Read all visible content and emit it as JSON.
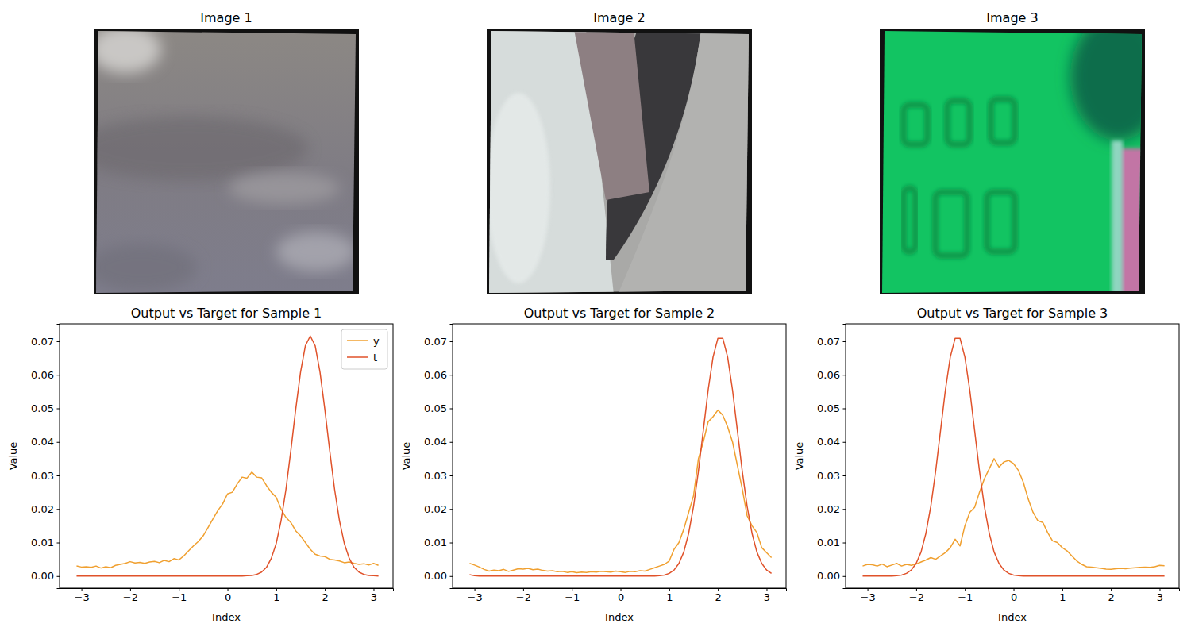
{
  "images": [
    {
      "title": "Image 1"
    },
    {
      "title": "Image 2"
    },
    {
      "title": "Image 3"
    }
  ],
  "chart_data": [
    {
      "type": "line",
      "title": "Output vs Target for Sample 1",
      "x_label": "Index",
      "y_label": "Value",
      "legend": "upper right",
      "xlim": [
        -3.45,
        3.4
      ],
      "ylim": [
        -0.0036,
        0.0752
      ],
      "xticks": [
        {
          "value": -3,
          "label": "−3"
        },
        {
          "value": -2,
          "label": "−2"
        },
        {
          "value": -1,
          "label": "−1"
        },
        0,
        1,
        2,
        3
      ],
      "yticks": [
        {
          "value": 0,
          "label": "0.00"
        },
        {
          "value": 0.01,
          "label": "0.01"
        },
        {
          "value": 0.02,
          "label": "0.02"
        },
        {
          "value": 0.03,
          "label": "0.03"
        },
        {
          "value": 0.04,
          "label": "0.04"
        },
        {
          "value": 0.05,
          "label": "0.05"
        },
        {
          "value": 0.06,
          "label": "0.06"
        },
        {
          "value": 0.07,
          "label": "0.07"
        }
      ],
      "x": [
        -3.1,
        -3.0,
        -2.9,
        -2.8,
        -2.7,
        -2.6,
        -2.5,
        -2.4,
        -2.3,
        -2.2,
        -2.1,
        -2.0,
        -1.9,
        -1.8,
        -1.7,
        -1.6,
        -1.5,
        -1.4,
        -1.3,
        -1.2,
        -1.1,
        -1.0,
        -0.9,
        -0.8,
        -0.7,
        -0.6,
        -0.5,
        -0.4,
        -0.3,
        -0.2,
        -0.1,
        0.0,
        0.1,
        0.2,
        0.3,
        0.4,
        0.5,
        0.6,
        0.7,
        0.8,
        0.9,
        1.0,
        1.1,
        1.2,
        1.3,
        1.4,
        1.5,
        1.6,
        1.7,
        1.8,
        1.9,
        2.0,
        2.1,
        2.2,
        2.3,
        2.4,
        2.5,
        2.6,
        2.7,
        2.8,
        2.9,
        3.0,
        3.1
      ],
      "series": [
        {
          "name": "y",
          "color": "#f0a030",
          "values": [
            0.003,
            0.0027,
            0.0028,
            0.0026,
            0.003,
            0.0024,
            0.0028,
            0.0025,
            0.0032,
            0.0035,
            0.0038,
            0.0043,
            0.0039,
            0.0041,
            0.0038,
            0.0042,
            0.0044,
            0.004,
            0.0047,
            0.0043,
            0.0052,
            0.0048,
            0.006,
            0.0075,
            0.009,
            0.0103,
            0.012,
            0.0145,
            0.017,
            0.0195,
            0.0215,
            0.0245,
            0.025,
            0.0275,
            0.0295,
            0.0292,
            0.031,
            0.0295,
            0.0293,
            0.027,
            0.025,
            0.0235,
            0.02,
            0.0175,
            0.016,
            0.0135,
            0.012,
            0.01,
            0.008,
            0.0065,
            0.006,
            0.0058,
            0.005,
            0.0048,
            0.0045,
            0.004,
            0.0042,
            0.0038,
            0.0035,
            0.0037,
            0.0033,
            0.0038,
            0.0032
          ]
        },
        {
          "name": "t",
          "color": "#e0522a",
          "values": [
            0,
            0,
            0,
            0,
            0,
            0,
            0,
            0,
            0,
            0,
            0,
            0,
            0,
            0,
            0,
            0,
            0,
            0,
            0,
            0,
            0,
            0,
            0,
            0,
            0,
            0,
            0,
            0,
            0,
            0,
            0,
            0,
            0,
            0,
            0,
            0.0001,
            0.0002,
            0.0005,
            0.0012,
            0.0026,
            0.0053,
            0.0097,
            0.0165,
            0.0258,
            0.0373,
            0.0496,
            0.0608,
            0.0687,
            0.0716,
            0.0687,
            0.0608,
            0.0496,
            0.0373,
            0.0258,
            0.0165,
            0.0097,
            0.0053,
            0.0026,
            0.0012,
            0.0005,
            0.0002,
            0.0001,
            0
          ]
        }
      ]
    },
    {
      "type": "line",
      "title": "Output vs Target for Sample 2",
      "x_label": "Index",
      "y_label": "Value",
      "xlim": [
        -3.45,
        3.4
      ],
      "ylim": [
        -0.0036,
        0.0752
      ],
      "xticks": [
        {
          "value": -3,
          "label": "−3"
        },
        {
          "value": -2,
          "label": "−2"
        },
        {
          "value": -1,
          "label": "−1"
        },
        0,
        1,
        2,
        3
      ],
      "yticks": [
        {
          "value": 0,
          "label": "0.00"
        },
        {
          "value": 0.01,
          "label": "0.01"
        },
        {
          "value": 0.02,
          "label": "0.02"
        },
        {
          "value": 0.03,
          "label": "0.03"
        },
        {
          "value": 0.04,
          "label": "0.04"
        },
        {
          "value": 0.05,
          "label": "0.05"
        },
        {
          "value": 0.06,
          "label": "0.06"
        },
        {
          "value": 0.07,
          "label": "0.07"
        }
      ],
      "x": [
        -3.1,
        -3.0,
        -2.9,
        -2.8,
        -2.7,
        -2.6,
        -2.5,
        -2.4,
        -2.3,
        -2.2,
        -2.1,
        -2.0,
        -1.9,
        -1.8,
        -1.7,
        -1.6,
        -1.5,
        -1.4,
        -1.3,
        -1.2,
        -1.1,
        -1.0,
        -0.9,
        -0.8,
        -0.7,
        -0.6,
        -0.5,
        -0.4,
        -0.3,
        -0.2,
        -0.1,
        0.0,
        0.1,
        0.2,
        0.3,
        0.4,
        0.5,
        0.6,
        0.7,
        0.8,
        0.9,
        1.0,
        1.1,
        1.2,
        1.3,
        1.4,
        1.5,
        1.6,
        1.7,
        1.8,
        1.9,
        2.0,
        2.1,
        2.2,
        2.3,
        2.4,
        2.5,
        2.6,
        2.7,
        2.8,
        2.9,
        3.0,
        3.1
      ],
      "series": [
        {
          "color": "#f0a030",
          "values": [
            0.0038,
            0.0033,
            0.0027,
            0.002,
            0.0015,
            0.0018,
            0.0016,
            0.002,
            0.0014,
            0.0018,
            0.0022,
            0.0021,
            0.0023,
            0.0019,
            0.0021,
            0.0017,
            0.0015,
            0.0016,
            0.0013,
            0.0014,
            0.0011,
            0.0013,
            0.001,
            0.0012,
            0.0011,
            0.0013,
            0.0012,
            0.0014,
            0.0013,
            0.0012,
            0.0015,
            0.0013,
            0.0011,
            0.0014,
            0.0013,
            0.0016,
            0.0015,
            0.002,
            0.0025,
            0.003,
            0.0035,
            0.0045,
            0.008,
            0.01,
            0.014,
            0.019,
            0.024,
            0.035,
            0.04,
            0.046,
            0.0475,
            0.0495,
            0.048,
            0.0445,
            0.04,
            0.033,
            0.026,
            0.018,
            0.015,
            0.013,
            0.0085,
            0.007,
            0.0055
          ]
        },
        {
          "color": "#e0522a",
          "values": [
            0.0004,
            0.0001,
            0,
            0,
            0,
            0,
            0,
            0,
            0,
            0,
            0,
            0,
            0,
            0,
            0,
            0,
            0,
            0,
            0,
            0,
            0,
            0,
            0,
            0,
            0,
            0,
            0,
            0,
            0,
            0,
            0,
            0,
            0,
            0,
            0,
            0,
            0,
            0,
            0,
            0.0001,
            0.0003,
            0.0008,
            0.0018,
            0.0038,
            0.0072,
            0.0128,
            0.0208,
            0.0313,
            0.0434,
            0.0555,
            0.0653,
            0.0709,
            0.0709,
            0.0653,
            0.0555,
            0.0434,
            0.0313,
            0.0208,
            0.0128,
            0.0072,
            0.0038,
            0.0018,
            0.0008
          ]
        }
      ]
    },
    {
      "type": "line",
      "title": "Output vs Target for Sample 3",
      "x_label": "Index",
      "y_label": "Value",
      "xlim": [
        -3.45,
        3.4
      ],
      "ylim": [
        -0.0036,
        0.0752
      ],
      "xticks": [
        {
          "value": -3,
          "label": "−3"
        },
        {
          "value": -2,
          "label": "−2"
        },
        {
          "value": -1,
          "label": "−1"
        },
        0,
        1,
        2,
        3
      ],
      "yticks": [
        {
          "value": 0,
          "label": "0.00"
        },
        {
          "value": 0.01,
          "label": "0.01"
        },
        {
          "value": 0.02,
          "label": "0.02"
        },
        {
          "value": 0.03,
          "label": "0.03"
        },
        {
          "value": 0.04,
          "label": "0.04"
        },
        {
          "value": 0.05,
          "label": "0.05"
        },
        {
          "value": 0.06,
          "label": "0.06"
        },
        {
          "value": 0.07,
          "label": "0.07"
        }
      ],
      "x": [
        -3.1,
        -3.0,
        -2.9,
        -2.8,
        -2.7,
        -2.6,
        -2.5,
        -2.4,
        -2.3,
        -2.2,
        -2.1,
        -2.0,
        -1.9,
        -1.8,
        -1.7,
        -1.6,
        -1.5,
        -1.4,
        -1.3,
        -1.2,
        -1.1,
        -1.0,
        -0.9,
        -0.8,
        -0.7,
        -0.6,
        -0.5,
        -0.4,
        -0.3,
        -0.2,
        -0.1,
        0.0,
        0.1,
        0.2,
        0.3,
        0.4,
        0.5,
        0.6,
        0.7,
        0.8,
        0.9,
        1.0,
        1.1,
        1.2,
        1.3,
        1.4,
        1.5,
        1.6,
        1.7,
        1.8,
        1.9,
        2.0,
        2.1,
        2.2,
        2.3,
        2.4,
        2.5,
        2.6,
        2.7,
        2.8,
        2.9,
        3.0,
        3.1
      ],
      "series": [
        {
          "color": "#f0a030",
          "values": [
            0.003,
            0.0035,
            0.0034,
            0.003,
            0.0036,
            0.0028,
            0.0033,
            0.0038,
            0.003,
            0.0035,
            0.0032,
            0.0036,
            0.0042,
            0.0048,
            0.0055,
            0.005,
            0.006,
            0.007,
            0.0085,
            0.011,
            0.009,
            0.015,
            0.019,
            0.0205,
            0.025,
            0.029,
            0.032,
            0.035,
            0.0325,
            0.034,
            0.0345,
            0.0335,
            0.0315,
            0.028,
            0.023,
            0.019,
            0.0165,
            0.016,
            0.013,
            0.0105,
            0.01,
            0.0085,
            0.0075,
            0.006,
            0.0045,
            0.0035,
            0.0028,
            0.0027,
            0.0025,
            0.0023,
            0.0021,
            0.002,
            0.0022,
            0.0023,
            0.0022,
            0.0024,
            0.0025,
            0.0026,
            0.0027,
            0.0026,
            0.0028,
            0.0032,
            0.0031
          ]
        },
        {
          "color": "#e0522a",
          "values": [
            0,
            0,
            0,
            0,
            0,
            0,
            0,
            0.0001,
            0.0003,
            0.0008,
            0.0018,
            0.0038,
            0.0072,
            0.0128,
            0.0208,
            0.0313,
            0.0434,
            0.0555,
            0.0653,
            0.0709,
            0.0709,
            0.0653,
            0.0555,
            0.0434,
            0.0313,
            0.0208,
            0.0128,
            0.0072,
            0.0038,
            0.0018,
            0.0008,
            0.0003,
            0.0001,
            0,
            0,
            0,
            0,
            0,
            0,
            0,
            0,
            0,
            0,
            0,
            0,
            0,
            0,
            0,
            0,
            0,
            0,
            0,
            0,
            0,
            0,
            0,
            0,
            0,
            0,
            0,
            0,
            0,
            0
          ]
        }
      ]
    }
  ]
}
